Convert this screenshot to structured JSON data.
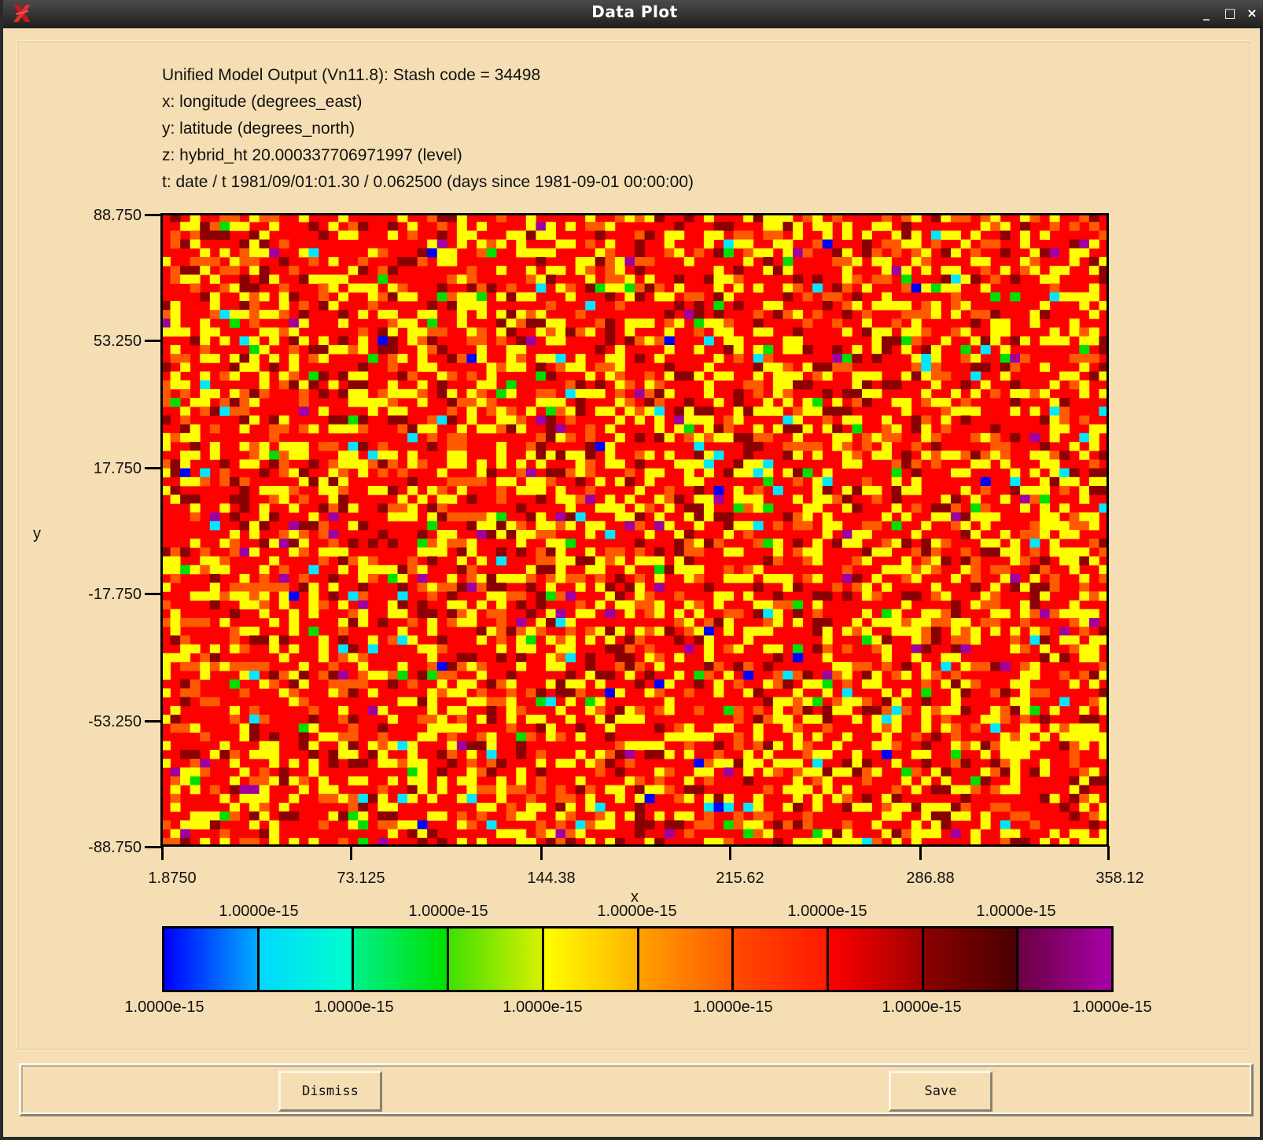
{
  "window": {
    "title": "Data Plot",
    "controls": {
      "minimize": "_",
      "maximize": "□",
      "close": "×"
    }
  },
  "plot_info": {
    "lines": [
      "Unified Model Output (Vn11.8): Stash code = 34498",
      "x: longitude  (degrees_east)",
      "y: latitude  (degrees_north)",
      "z: hybrid_ht 20.000337706971997 (level)",
      "t: date / t 1981/09/01:01.30 / 0.062500 (days since 1981-09-01 00:00:00)"
    ]
  },
  "chart_data": {
    "type": "heatmap",
    "xlabel": "x",
    "ylabel": "y",
    "xlim": [
      1.875,
      358.125
    ],
    "ylim": [
      -88.75,
      88.75
    ],
    "x_ticks": [
      "1.8750",
      "73.125",
      "144.38",
      "215.62",
      "286.88",
      "358.12"
    ],
    "y_ticks": [
      "88.750",
      "53.250",
      "17.750",
      "-17.750",
      "-53.250",
      "-88.750"
    ],
    "grid": false,
    "cells": {
      "columns": 96,
      "rows": 72,
      "pattern": "noisy field, mostly red / yellow / orange / dark red with sparse cyan, green, purple and blue cells"
    },
    "colorbar": {
      "segments": [
        {
          "from": "#0000ff",
          "to": "#00aaff"
        },
        {
          "from": "#00d8ff",
          "to": "#00ffcc"
        },
        {
          "from": "#00f08a",
          "to": "#00e000"
        },
        {
          "from": "#40e000",
          "to": "#d8f000"
        },
        {
          "from": "#ffff00",
          "to": "#ffb400"
        },
        {
          "from": "#ffa000",
          "to": "#ff5a00"
        },
        {
          "from": "#ff4a00",
          "to": "#ff1a00"
        },
        {
          "from": "#ff0000",
          "to": "#a00000"
        },
        {
          "from": "#8a0000",
          "to": "#4a0000"
        },
        {
          "from": "#6a0040",
          "to": "#a800a8"
        }
      ],
      "top_labels": [
        "1.0000e-15",
        "1.0000e-15",
        "1.0000e-15",
        "1.0000e-15",
        "1.0000e-15"
      ],
      "bottom_labels": [
        "1.0000e-15",
        "1.0000e-15",
        "1.0000e-15",
        "1.0000e-15",
        "1.0000e-15",
        "1.0000e-15"
      ]
    },
    "palette": {
      "red": "#ff0000",
      "yellow": "#ffff00",
      "orange": "#ff5a00",
      "dark_red": "#8b0000",
      "cyan": "#00e8ff",
      "green": "#00e000",
      "purple": "#a000a0",
      "blue": "#0000ff"
    }
  },
  "buttons": {
    "dismiss": "Dismiss",
    "save": "Save"
  }
}
